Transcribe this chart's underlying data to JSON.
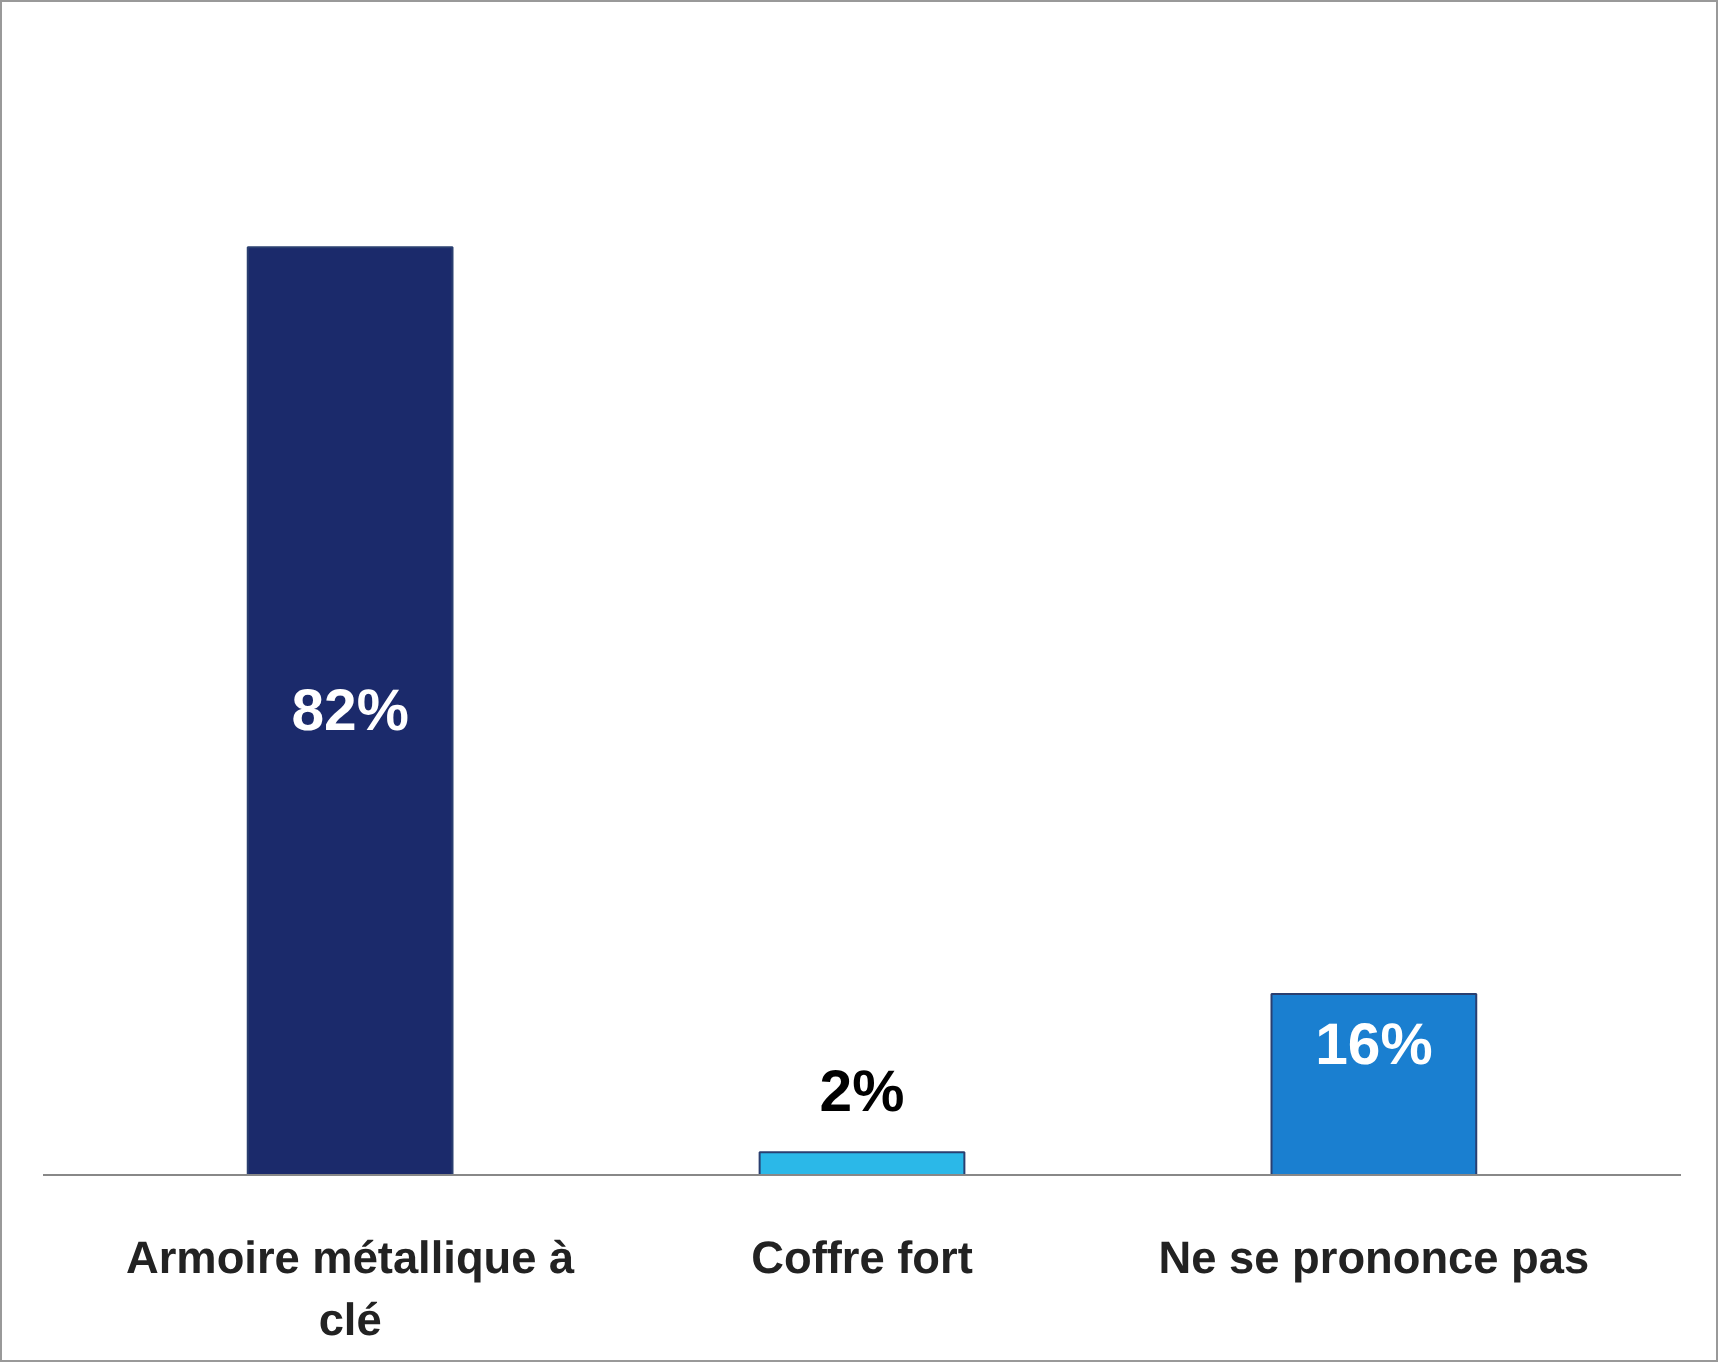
{
  "chart_data": {
    "type": "bar",
    "categories": [
      "Armoire métallique à clé",
      "Coffre fort",
      "Ne se prononce pas"
    ],
    "values": [
      82,
      2,
      16
    ],
    "colors": [
      "#1b2a6b",
      "#2bb8e8",
      "#1a7fd0"
    ],
    "value_labels": [
      "82%",
      "2%",
      "16%"
    ]
  }
}
